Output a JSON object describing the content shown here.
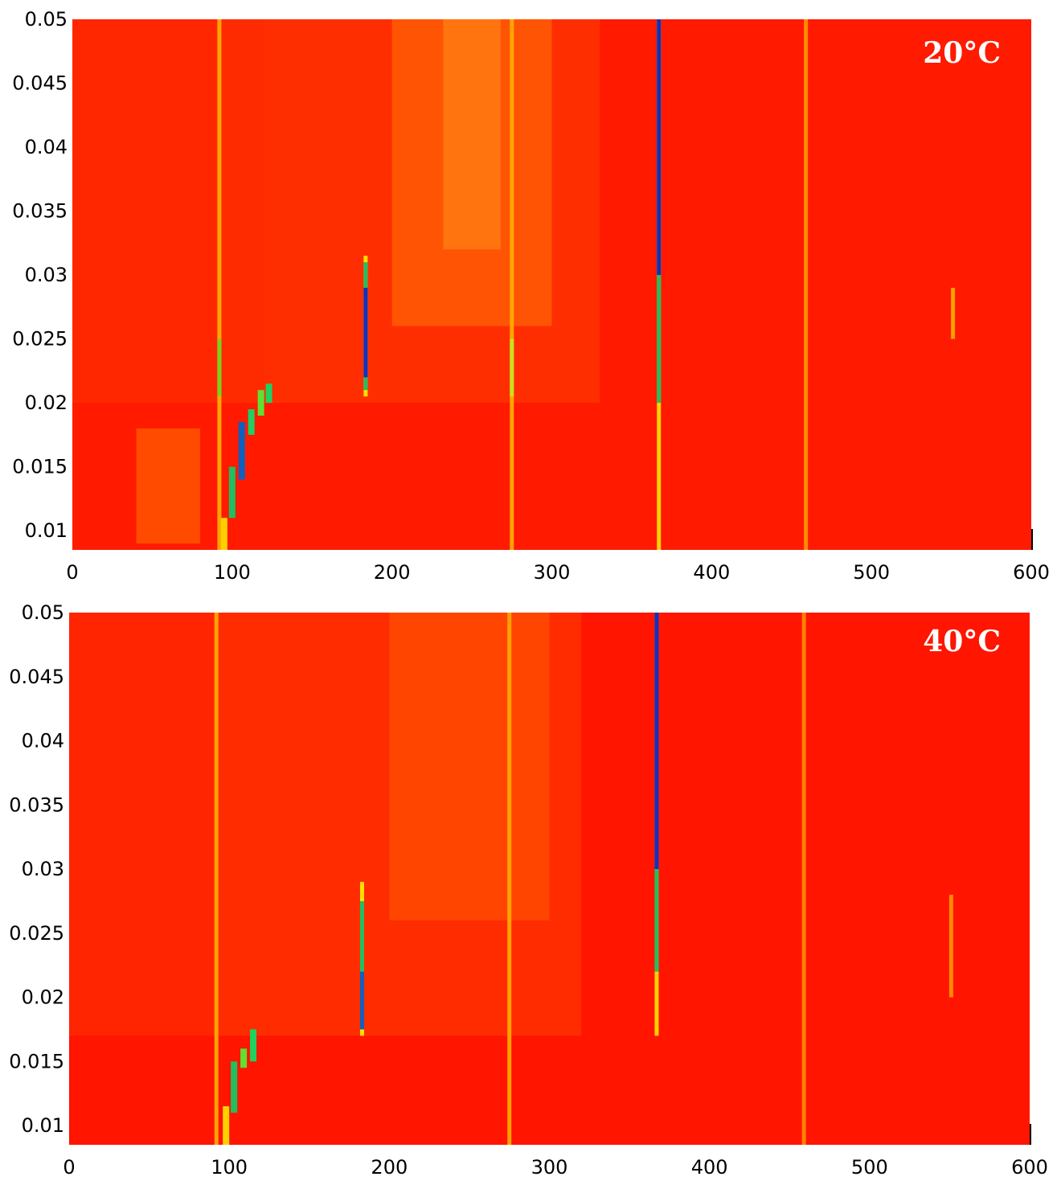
{
  "chart_data": [
    {
      "type": "heatmap",
      "panel_label": "20°C",
      "xlim": [
        0,
        600
      ],
      "ylim": [
        0.0085,
        0.05
      ],
      "x_ticks": [
        0,
        100,
        200,
        300,
        400,
        500,
        600
      ],
      "x_tick_labels": [
        "0",
        "100",
        "200",
        "300",
        "400",
        "500",
        "600"
      ],
      "y_ticks": [
        0.01,
        0.015,
        0.02,
        0.025,
        0.03,
        0.035,
        0.04,
        0.045,
        0.05
      ],
      "y_tick_labels": [
        "0.01",
        "0.015",
        "0.02",
        "0.025",
        "0.03",
        "0.035",
        "0.04",
        "0.045",
        "0.05"
      ],
      "colors": {
        "background": "#ff1a00",
        "mid": "#ff3a00"
      },
      "regions": [
        {
          "x": [
            90,
            330
          ],
          "y": [
            0.02,
            0.05
          ],
          "color": "#ff3300"
        },
        {
          "x": [
            200,
            300
          ],
          "y": [
            0.026,
            0.05
          ],
          "color": "#ff5a05"
        },
        {
          "x": [
            232,
            268
          ],
          "y": [
            0.032,
            0.05
          ],
          "color": "#ff7a10"
        },
        {
          "x": [
            0,
            120
          ],
          "y": [
            0.02,
            0.05
          ],
          "color": "#ff2a00"
        },
        {
          "x": [
            40,
            80
          ],
          "y": [
            0.009,
            0.018
          ],
          "color": "#ff5500"
        }
      ],
      "lines": [
        {
          "x": 92,
          "y": [
            0.0085,
            0.05
          ],
          "color": "#ffa500"
        },
        {
          "x": 92,
          "y": [
            0.0205,
            0.025
          ],
          "color": "#7ad21e"
        },
        {
          "x": 183.5,
          "y": [
            0.0205,
            0.0315
          ],
          "color": "#ffe000"
        },
        {
          "x": 183.5,
          "y": [
            0.021,
            0.031
          ],
          "color": "#20c060"
        },
        {
          "x": 183.5,
          "y": [
            0.022,
            0.029
          ],
          "color": "#1030c0"
        },
        {
          "x": 275,
          "y": [
            0.0085,
            0.05
          ],
          "color": "#ffa500"
        },
        {
          "x": 275,
          "y": [
            0.0205,
            0.025
          ],
          "color": "#c8e020"
        },
        {
          "x": 367,
          "y": [
            0.0085,
            0.05
          ],
          "color": "#ffd000"
        },
        {
          "x": 367,
          "y": [
            0.02,
            0.05
          ],
          "color": "#20c060"
        },
        {
          "x": 367,
          "y": [
            0.03,
            0.05
          ],
          "color": "#1030c0"
        },
        {
          "x": 459,
          "y": [
            0.0085,
            0.05
          ],
          "color": "#ff8a00"
        },
        {
          "x": 551,
          "y": [
            0.025,
            0.029
          ],
          "color": "#ffa000"
        }
      ],
      "trail": [
        {
          "x": 95,
          "y": [
            0.0085,
            0.011
          ],
          "color": "#ffd000"
        },
        {
          "x": 100,
          "y": [
            0.011,
            0.015
          ],
          "color": "#20c060"
        },
        {
          "x": 106,
          "y": [
            0.014,
            0.0185
          ],
          "color": "#1060c0"
        },
        {
          "x": 112,
          "y": [
            0.0175,
            0.0195
          ],
          "color": "#20d060"
        },
        {
          "x": 118,
          "y": [
            0.019,
            0.021
          ],
          "color": "#60e030"
        },
        {
          "x": 123,
          "y": [
            0.02,
            0.0215
          ],
          "color": "#20d060"
        }
      ]
    },
    {
      "type": "heatmap",
      "panel_label": "40°C",
      "xlim": [
        0,
        600
      ],
      "ylim": [
        0.0085,
        0.05
      ],
      "x_ticks": [
        0,
        100,
        200,
        300,
        400,
        500,
        600
      ],
      "x_tick_labels": [
        "0",
        "100",
        "200",
        "300",
        "400",
        "500",
        "600"
      ],
      "y_ticks": [
        0.01,
        0.015,
        0.02,
        0.025,
        0.03,
        0.035,
        0.04,
        0.045,
        0.05
      ],
      "y_tick_labels": [
        "0.01",
        "0.015",
        "0.02",
        "0.025",
        "0.03",
        "0.035",
        "0.04",
        "0.045",
        "0.05"
      ],
      "colors": {
        "background": "#ff1500",
        "mid": "#ff3000"
      },
      "regions": [
        {
          "x": [
            90,
            320
          ],
          "y": [
            0.017,
            0.05
          ],
          "color": "#ff3000"
        },
        {
          "x": [
            200,
            300
          ],
          "y": [
            0.026,
            0.05
          ],
          "color": "#ff4a00"
        },
        {
          "x": [
            0,
            90
          ],
          "y": [
            0.017,
            0.05
          ],
          "color": "#ff2800"
        }
      ],
      "lines": [
        {
          "x": 92,
          "y": [
            0.0085,
            0.05
          ],
          "color": "#ffa000"
        },
        {
          "x": 183,
          "y": [
            0.017,
            0.029
          ],
          "color": "#ffe000"
        },
        {
          "x": 183,
          "y": [
            0.0175,
            0.0275
          ],
          "color": "#20c060"
        },
        {
          "x": 183,
          "y": [
            0.0175,
            0.022
          ],
          "color": "#1060c0"
        },
        {
          "x": 275,
          "y": [
            0.0085,
            0.05
          ],
          "color": "#ffa000"
        },
        {
          "x": 367,
          "y": [
            0.017,
            0.05
          ],
          "color": "#ffd000"
        },
        {
          "x": 367,
          "y": [
            0.022,
            0.05
          ],
          "color": "#20c060"
        },
        {
          "x": 367,
          "y": [
            0.03,
            0.05
          ],
          "color": "#1030c0"
        },
        {
          "x": 459,
          "y": [
            0.0085,
            0.05
          ],
          "color": "#ff8000"
        },
        {
          "x": 551,
          "y": [
            0.02,
            0.028
          ],
          "color": "#ff8a00"
        }
      ],
      "trail": [
        {
          "x": 98,
          "y": [
            0.0085,
            0.0115
          ],
          "color": "#ffd000"
        },
        {
          "x": 103,
          "y": [
            0.011,
            0.015
          ],
          "color": "#20c060"
        },
        {
          "x": 109,
          "y": [
            0.0145,
            0.016
          ],
          "color": "#60e030"
        },
        {
          "x": 115,
          "y": [
            0.015,
            0.0175
          ],
          "color": "#20d060"
        }
      ]
    }
  ]
}
